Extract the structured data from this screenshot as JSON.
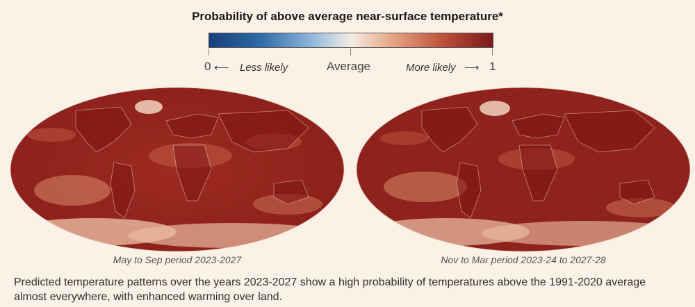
{
  "title": "Probability of above average near-surface temperature*",
  "legend": {
    "min_label": "0",
    "less_label": "Less likely",
    "mid_label": "Average",
    "more_label": "More likely",
    "max_label": "1",
    "colors": [
      "#163f7b",
      "#2f6aa8",
      "#8eb6da",
      "#f3ede6",
      "#e7a888",
      "#c0533d",
      "#7a1818"
    ]
  },
  "maps": [
    {
      "caption": "May to Sep period 2023-2027"
    },
    {
      "caption": "Nov to Mar period 2023-24 to 2027-28"
    }
  ],
  "description": "Predicted temperature patterns over the years 2023-2027 show a high probability of temperatures above the 1991-2020 average almost everywhere, with enhanced warming over land."
}
